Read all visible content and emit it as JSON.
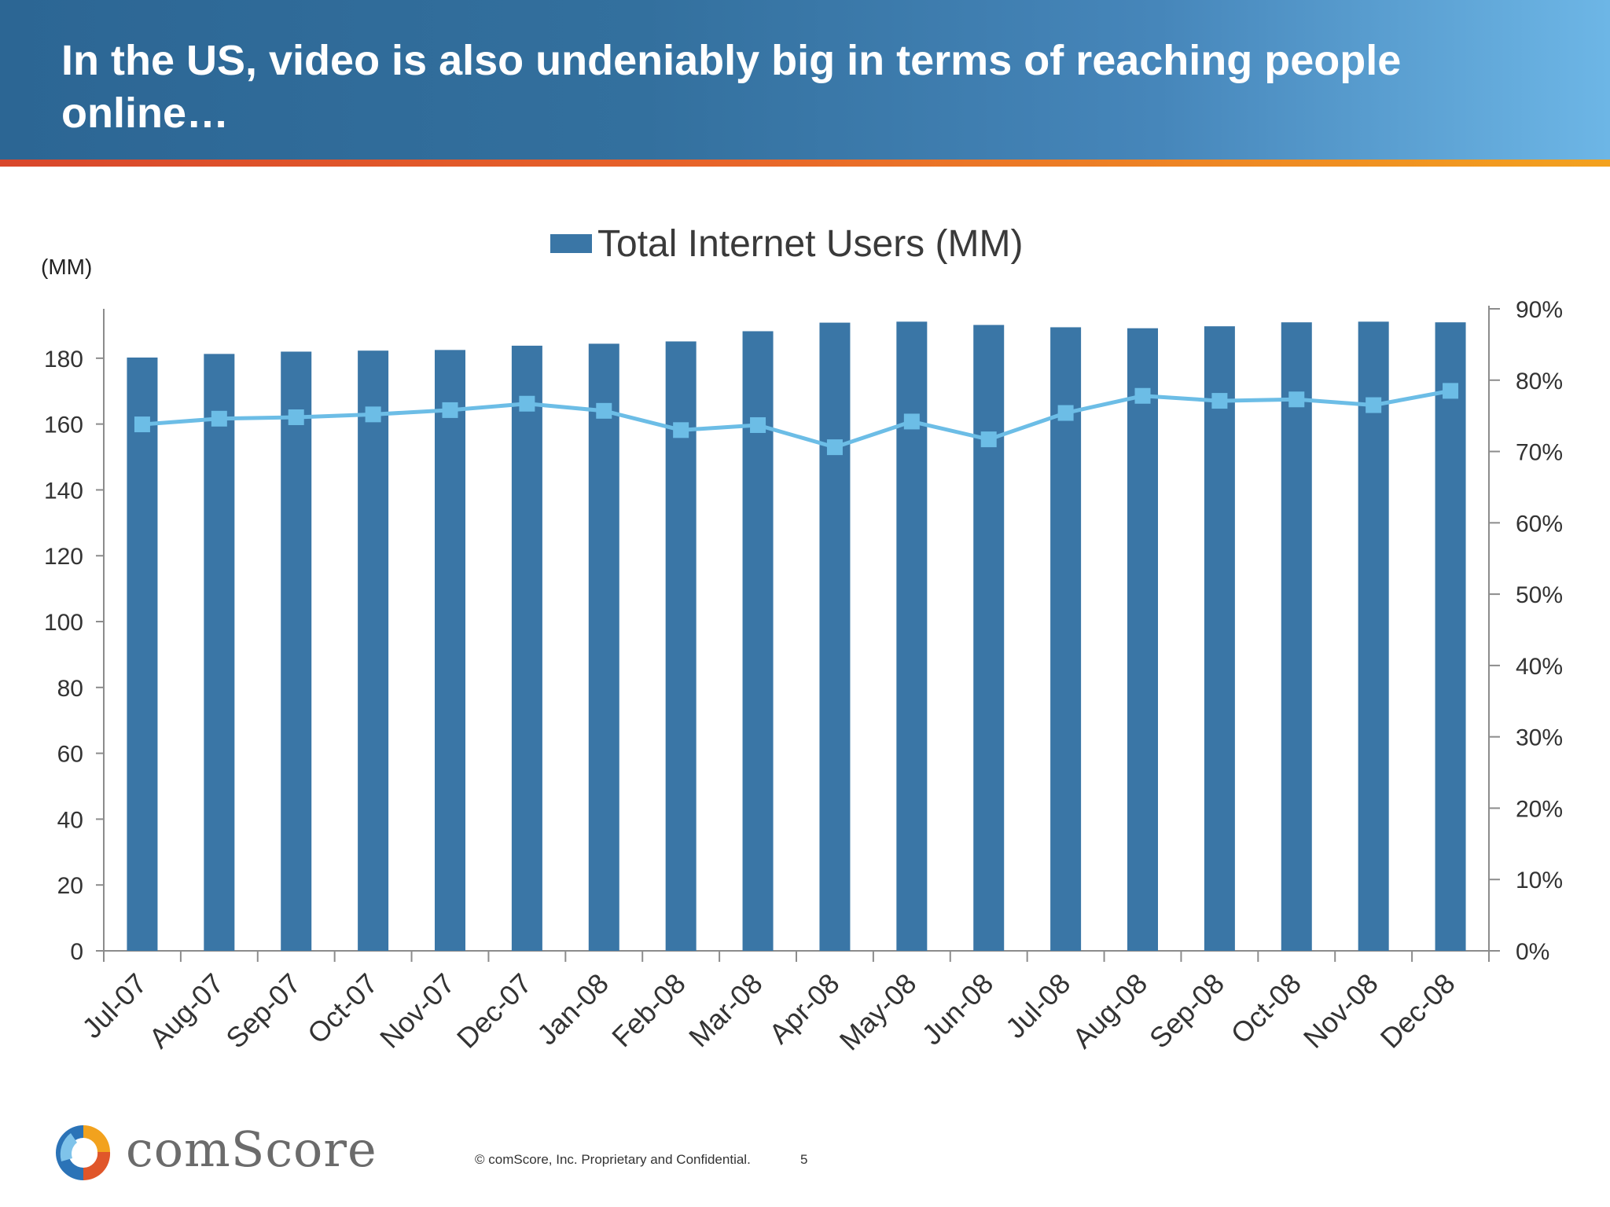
{
  "slide": {
    "title": "In the US, video is also undeniably big in terms of reaching people online…",
    "footer_copyright": "© comScore, Inc.  Proprietary and Confidential.",
    "page_number": "5",
    "logo_text": "comScore"
  },
  "colors": {
    "bar": "#3a76a6",
    "line": "#6cbde6",
    "axis": "#8c8c8c",
    "tick_text": "#333333"
  },
  "chart_data": {
    "type": "bar",
    "title": "",
    "legend": [
      "Total Internet Users (MM)"
    ],
    "legend_position": "top",
    "y_unit_label": "(MM)",
    "categories": [
      "Jul-07",
      "Aug-07",
      "Sep-07",
      "Oct-07",
      "Nov-07",
      "Dec-07",
      "Jan-08",
      "Feb-08",
      "Mar-08",
      "Apr-08",
      "May-08",
      "Jun-08",
      "Jul-08",
      "Aug-08",
      "Sep-08",
      "Oct-08",
      "Nov-08",
      "Dec-08"
    ],
    "series": [
      {
        "name": "Total Internet Users (MM)",
        "type": "bar",
        "axis": "left",
        "values": [
          180.2,
          181.3,
          182.0,
          182.3,
          182.5,
          183.8,
          184.4,
          185.1,
          188.2,
          190.8,
          191.1,
          190.1,
          189.4,
          189.1,
          189.7,
          190.9,
          191.1,
          190.9
        ]
      },
      {
        "type": "line",
        "axis": "right",
        "marker": "square",
        "values": [
          0.738,
          0.746,
          0.748,
          0.752,
          0.758,
          0.767,
          0.757,
          0.73,
          0.737,
          0.706,
          0.742,
          0.717,
          0.754,
          0.778,
          0.771,
          0.773,
          0.765,
          0.785
        ]
      }
    ],
    "y_left": {
      "min": 0,
      "max": 195,
      "ticks": [
        0,
        20,
        40,
        60,
        80,
        100,
        120,
        140,
        160,
        180
      ]
    },
    "y_right": {
      "min": 0,
      "max": 0.9,
      "ticks": [
        0,
        0.1,
        0.2,
        0.3,
        0.4,
        0.5,
        0.6,
        0.7,
        0.8,
        0.9
      ],
      "tick_labels": [
        "0%",
        "10%",
        "20%",
        "30%",
        "40%",
        "50%",
        "60%",
        "70%",
        "80%",
        "90%"
      ]
    },
    "grid": false
  }
}
